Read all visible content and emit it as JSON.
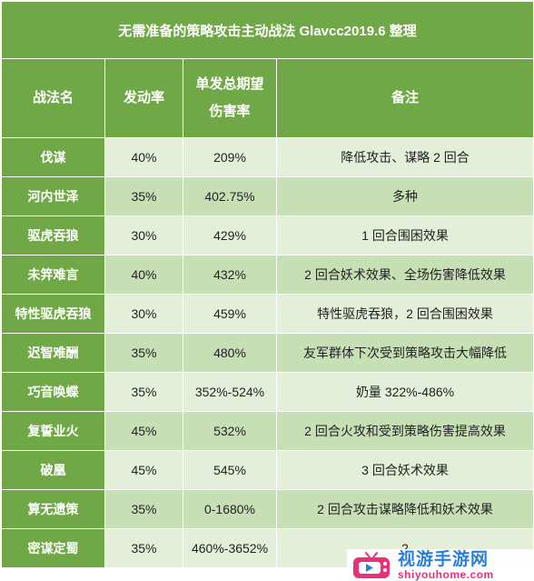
{
  "table": {
    "title": "无需准备的策略攻击主动战法 Glavcc2019.6 整理",
    "headers": {
      "name": "战法名",
      "rate": "发动率",
      "damage_line1": "单发总期望",
      "damage_line2": "伤害率",
      "note": "备注"
    },
    "rows": [
      {
        "name": "伐谋",
        "rate": "40%",
        "damage": "209%",
        "note": "降低攻击、谋略 2 回合"
      },
      {
        "name": "河内世泽",
        "rate": "35%",
        "damage": "402.75%",
        "note": "多种"
      },
      {
        "name": "驱虎吞狼",
        "rate": "30%",
        "damage": "429%",
        "note": "1 回合围困效果"
      },
      {
        "name": "未笄难言",
        "rate": "40%",
        "damage": "432%",
        "note": "2 回合妖术效果、全场伤害降低效果"
      },
      {
        "name": "特性驱虎吞狼",
        "rate": "30%",
        "damage": "459%",
        "note": "特性驱虎吞狼，2 回合围困效果"
      },
      {
        "name": "迟智难酬",
        "rate": "35%",
        "damage": "480%",
        "note": "友军群体下次受到策略攻击大幅降低"
      },
      {
        "name": "巧音唤蝶",
        "rate": "35%",
        "damage": "352%-524%",
        "note": "奶量 322%-486%"
      },
      {
        "name": "复誓业火",
        "rate": "45%",
        "damage": "532%",
        "note": "2 回合火攻和受到策略伤害提高效果"
      },
      {
        "name": "破凰",
        "rate": "45%",
        "damage": "545%",
        "note": "3 回合妖术效果"
      },
      {
        "name": "算无遗策",
        "rate": "35%",
        "damage": "0-1680%",
        "note": "2 回合攻击谋略降低和妖术效果"
      },
      {
        "name": "密谋定蜀",
        "rate": "35%",
        "damage": "460%-3652%",
        "note": "2"
      }
    ]
  },
  "watermark": {
    "icon": "tv-icon",
    "cn": "视游手游网",
    "en": "shiyouhome.com"
  },
  "colors": {
    "header_green": "#70a847",
    "row_light": "#e3efd9",
    "row_mid": "#c7dfb5",
    "watermark_blue": "#2a7fd6",
    "watermark_pink": "#e8317a"
  }
}
